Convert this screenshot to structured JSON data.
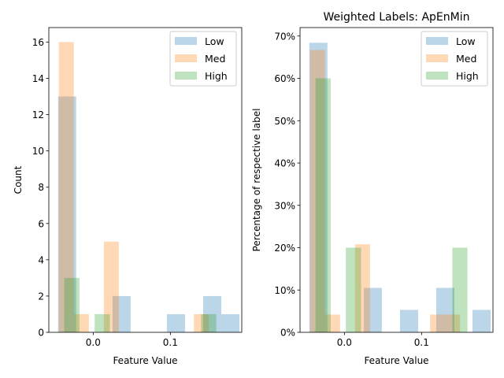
{
  "chart_data": [
    {
      "type": "bar",
      "title": "",
      "xlabel": "Feature Value",
      "ylabel": "Count",
      "xlim": [
        -0.0575,
        0.1925
      ],
      "ylim": [
        0,
        16.8
      ],
      "xticks": [
        {
          "v": 0.0,
          "label": "0.0"
        },
        {
          "v": 0.1,
          "label": "0.1"
        }
      ],
      "yticks": [
        {
          "v": 0,
          "label": "0"
        },
        {
          "v": 2,
          "label": "2"
        },
        {
          "v": 4,
          "label": "4"
        },
        {
          "v": 6,
          "label": "6"
        },
        {
          "v": 8,
          "label": "8"
        },
        {
          "v": 10,
          "label": "10"
        },
        {
          "v": 12,
          "label": "12"
        },
        {
          "v": 14,
          "label": "14"
        },
        {
          "v": 16,
          "label": "16"
        }
      ],
      "legend_position": "top-right",
      "series": [
        {
          "name": "Low",
          "color": "#1f77b4",
          "bars": [
            [
              -0.0455,
              0.0235,
              13
            ],
            [
              -0.022,
              0.0235,
              0
            ],
            [
              0.0015,
              0.0235,
              0
            ],
            [
              0.025,
              0.0235,
              2
            ],
            [
              0.0485,
              0.0235,
              0
            ],
            [
              0.072,
              0.0235,
              0
            ],
            [
              0.0955,
              0.0235,
              1
            ],
            [
              0.119,
              0.0235,
              0
            ],
            [
              0.1425,
              0.0235,
              2
            ],
            [
              0.166,
              0.0235,
              1
            ]
          ]
        },
        {
          "name": "Med",
          "color": "#ff7f0e",
          "bars": [
            [
              -0.0445,
              0.0194,
              16
            ],
            [
              -0.025,
              0.0194,
              1
            ],
            [
              -0.0056,
              0.0194,
              0
            ],
            [
              0.0138,
              0.0194,
              5
            ],
            [
              0.0333,
              0.0194,
              0
            ],
            [
              0.0527,
              0.0194,
              0
            ],
            [
              0.0722,
              0.0194,
              0
            ],
            [
              0.0916,
              0.0194,
              0
            ],
            [
              0.111,
              0.0194,
              0
            ],
            [
              0.1305,
              0.0194,
              1
            ]
          ]
        },
        {
          "name": "High",
          "color": "#2ca02c",
          "bars": [
            [
              -0.0375,
              0.0197,
              3
            ],
            [
              -0.0178,
              0.0197,
              0
            ],
            [
              0.0019,
              0.0197,
              1
            ],
            [
              0.0216,
              0.0197,
              0
            ],
            [
              0.0413,
              0.0197,
              0
            ],
            [
              0.061,
              0.0197,
              0
            ],
            [
              0.0807,
              0.0197,
              0
            ],
            [
              0.1004,
              0.0197,
              0
            ],
            [
              0.1201,
              0.0197,
              0
            ],
            [
              0.1398,
              0.0197,
              1
            ]
          ]
        }
      ]
    },
    {
      "type": "bar",
      "title": "Weighted Labels: ApEnMin",
      "xlabel": "Feature Value",
      "ylabel": "Percentage of respective label",
      "xlim": [
        -0.0575,
        0.1925
      ],
      "ylim": [
        0,
        0.72
      ],
      "xticks": [
        {
          "v": 0.0,
          "label": "0.0"
        },
        {
          "v": 0.1,
          "label": "0.1"
        }
      ],
      "yticks": [
        {
          "v": 0.0,
          "label": "0%"
        },
        {
          "v": 0.1,
          "label": "10%"
        },
        {
          "v": 0.2,
          "label": "20%"
        },
        {
          "v": 0.3,
          "label": "30%"
        },
        {
          "v": 0.4,
          "label": "40%"
        },
        {
          "v": 0.5,
          "label": "50%"
        },
        {
          "v": 0.6,
          "label": "60%"
        },
        {
          "v": 0.7,
          "label": "70%"
        }
      ],
      "legend_position": "top-right",
      "series": [
        {
          "name": "Low",
          "color": "#1f77b4",
          "bars": [
            [
              -0.0455,
              0.0235,
              0.684
            ],
            [
              -0.022,
              0.0235,
              0
            ],
            [
              0.0015,
              0.0235,
              0
            ],
            [
              0.025,
              0.0235,
              0.105
            ],
            [
              0.0485,
              0.0235,
              0
            ],
            [
              0.072,
              0.0235,
              0.053
            ],
            [
              0.0955,
              0.0235,
              0
            ],
            [
              0.119,
              0.0235,
              0.105
            ],
            [
              0.1425,
              0.0235,
              0
            ],
            [
              0.166,
              0.0235,
              0.053
            ]
          ]
        },
        {
          "name": "Med",
          "color": "#ff7f0e",
          "bars": [
            [
              -0.0445,
              0.0194,
              0.667
            ],
            [
              -0.025,
              0.0194,
              0.042
            ],
            [
              -0.0056,
              0.0194,
              0
            ],
            [
              0.0138,
              0.0194,
              0.208
            ],
            [
              0.0333,
              0.0194,
              0
            ],
            [
              0.0527,
              0.0194,
              0
            ],
            [
              0.0722,
              0.0194,
              0
            ],
            [
              0.0916,
              0.0194,
              0
            ],
            [
              0.111,
              0.0194,
              0.042
            ],
            [
              0.1305,
              0.0194,
              0.042
            ]
          ]
        },
        {
          "name": "High",
          "color": "#2ca02c",
          "bars": [
            [
              -0.0375,
              0.0197,
              0.6
            ],
            [
              -0.0178,
              0.0197,
              0
            ],
            [
              0.0019,
              0.0197,
              0.2
            ],
            [
              0.0216,
              0.0197,
              0
            ],
            [
              0.0413,
              0.0197,
              0
            ],
            [
              0.061,
              0.0197,
              0
            ],
            [
              0.0807,
              0.0197,
              0
            ],
            [
              0.1004,
              0.0197,
              0
            ],
            [
              0.1201,
              0.0197,
              0
            ],
            [
              0.1398,
              0.0197,
              0.2
            ]
          ]
        }
      ]
    }
  ]
}
